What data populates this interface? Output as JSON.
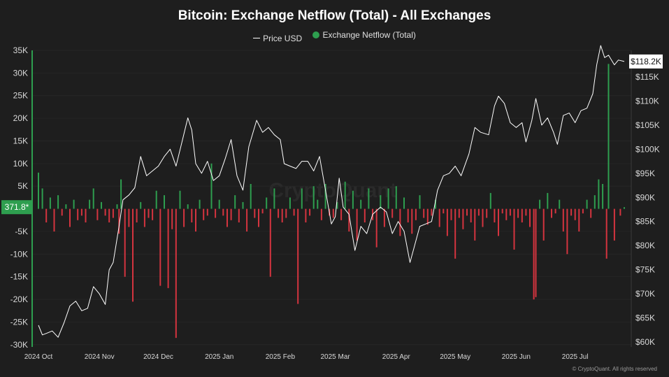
{
  "chart_data": {
    "type": "bar",
    "title": "Bitcoin: Exchange Netflow (Total) - All Exchanges",
    "legend": [
      {
        "name": "Price USD",
        "marker": "line",
        "color": "#ffffff"
      },
      {
        "name": "Exchange Netflow (Total)",
        "marker": "dot",
        "color": "#2e9e4f"
      }
    ],
    "legend_position": "top-center",
    "watermark": "CryptoQuant",
    "copyright": "© CryptoQuant. All rights reserved",
    "colors": {
      "positive": "#2e9e4f",
      "negative": "#d4343f",
      "price": "#ffffff",
      "background": "#1e1e1e"
    },
    "left_axis": {
      "label": "",
      "range": [
        -30500,
        35000
      ],
      "ticks": [
        35000,
        30000,
        25000,
        20000,
        15000,
        10000,
        5000,
        -5000,
        -10000,
        -15000,
        -20000,
        -25000,
        -30000
      ],
      "tick_labels": [
        "35K",
        "30K",
        "25K",
        "20K",
        "15K",
        "10K",
        "5K",
        "-5K",
        "-10K",
        "-15K",
        "-20K",
        "-25K",
        "-30K"
      ]
    },
    "right_axis": {
      "label": "",
      "range": [
        59000,
        120500
      ],
      "ticks": [
        115000,
        110000,
        105000,
        100000,
        95000,
        90000,
        85000,
        80000,
        75000,
        70000,
        65000,
        60000
      ],
      "tick_labels": [
        "$115K",
        "$110K",
        "$105K",
        "$100K",
        "$95K",
        "$90K",
        "$85K",
        "$80K",
        "$75K",
        "$70K",
        "$65K",
        "$60K"
      ]
    },
    "x_axis": {
      "start": "2024-10-01",
      "end": "2025-07-26",
      "tick_dates": [
        "2024-10-01",
        "2024-11-01",
        "2024-12-01",
        "2025-01-01",
        "2025-02-01",
        "2025-03-01",
        "2025-04-01",
        "2025-05-01",
        "2025-06-01",
        "2025-07-01"
      ],
      "tick_labels": [
        "2024 Oct",
        "2024 Nov",
        "2024 Dec",
        "2025 Jan",
        "2025 Feb",
        "2025 Mar",
        "2025 Apr",
        "2025 May",
        "2025 Jun",
        "2025 Jul"
      ]
    },
    "current_netflow_label": "371.8*",
    "current_netflow_value": 371.8,
    "current_price_label": "$118.2K",
    "current_price_value": 118200,
    "netflow": [
      [
        "2024-10-01",
        8000
      ],
      [
        "2024-10-03",
        4500
      ],
      [
        "2024-10-05",
        -3000
      ],
      [
        "2024-10-07",
        2500
      ],
      [
        "2024-10-09",
        -5000
      ],
      [
        "2024-10-11",
        3000
      ],
      [
        "2024-10-13",
        -1500
      ],
      [
        "2024-10-15",
        1000
      ],
      [
        "2024-10-17",
        -4000
      ],
      [
        "2024-10-19",
        2000
      ],
      [
        "2024-10-21",
        -2500
      ],
      [
        "2024-10-23",
        -1500
      ],
      [
        "2024-10-25",
        -3000
      ],
      [
        "2024-10-27",
        2000
      ],
      [
        "2024-10-29",
        4500
      ],
      [
        "2024-10-31",
        -2500
      ],
      [
        "2024-11-02",
        1500
      ],
      [
        "2024-11-04",
        -1500
      ],
      [
        "2024-11-06",
        -3000
      ],
      [
        "2024-11-08",
        -2000
      ],
      [
        "2024-11-10",
        1000
      ],
      [
        "2024-11-11",
        -5500
      ],
      [
        "2024-11-12",
        6500
      ],
      [
        "2024-11-14",
        -15000
      ],
      [
        "2024-11-16",
        -4000
      ],
      [
        "2024-11-18",
        -20500
      ],
      [
        "2024-11-20",
        -3000
      ],
      [
        "2024-11-22",
        1500
      ],
      [
        "2024-11-24",
        -4000
      ],
      [
        "2024-11-26",
        -2000
      ],
      [
        "2024-11-28",
        -2500
      ],
      [
        "2024-11-30",
        4000
      ],
      [
        "2024-12-02",
        -17000
      ],
      [
        "2024-12-04",
        3000
      ],
      [
        "2024-12-06",
        -17500
      ],
      [
        "2024-12-08",
        -4500
      ],
      [
        "2024-12-10",
        -28500
      ],
      [
        "2024-12-12",
        4000
      ],
      [
        "2024-12-14",
        -4000
      ],
      [
        "2024-12-16",
        1000
      ],
      [
        "2024-12-18",
        -3000
      ],
      [
        "2024-12-20",
        -5000
      ],
      [
        "2024-12-22",
        2000
      ],
      [
        "2024-12-24",
        -2500
      ],
      [
        "2024-12-26",
        -1500
      ],
      [
        "2024-12-28",
        10000
      ],
      [
        "2024-12-30",
        -2000
      ],
      [
        "2025-01-01",
        2000
      ],
      [
        "2025-01-03",
        -1500
      ],
      [
        "2025-01-05",
        -4000
      ],
      [
        "2025-01-07",
        -2500
      ],
      [
        "2025-01-09",
        3000
      ],
      [
        "2025-01-11",
        -3000
      ],
      [
        "2025-01-13",
        1500
      ],
      [
        "2025-01-15",
        -5000
      ],
      [
        "2025-01-17",
        5500
      ],
      [
        "2025-01-19",
        -2000
      ],
      [
        "2025-01-21",
        -4000
      ],
      [
        "2025-01-23",
        -1000
      ],
      [
        "2025-01-25",
        2500
      ],
      [
        "2025-01-27",
        -15000
      ],
      [
        "2025-01-29",
        4500
      ],
      [
        "2025-01-31",
        -2000
      ],
      [
        "2025-02-02",
        -3000
      ],
      [
        "2025-02-04",
        -2000
      ],
      [
        "2025-02-06",
        2500
      ],
      [
        "2025-02-08",
        -1500
      ],
      [
        "2025-02-10",
        -21000
      ],
      [
        "2025-02-12",
        4500
      ],
      [
        "2025-02-14",
        -3000
      ],
      [
        "2025-02-16",
        -1500
      ],
      [
        "2025-02-18",
        5000
      ],
      [
        "2025-02-20",
        2000
      ],
      [
        "2025-02-22",
        -2500
      ],
      [
        "2025-02-24",
        5500
      ],
      [
        "2025-02-26",
        -1500
      ],
      [
        "2025-02-28",
        -2000
      ],
      [
        "2025-03-02",
        1500
      ],
      [
        "2025-03-04",
        -2500
      ],
      [
        "2025-03-06",
        6000
      ],
      [
        "2025-03-08",
        -5000
      ],
      [
        "2025-03-10",
        4000
      ],
      [
        "2025-03-12",
        -7000
      ],
      [
        "2025-03-14",
        2000
      ],
      [
        "2025-03-16",
        -3000
      ],
      [
        "2025-03-18",
        4500
      ],
      [
        "2025-03-20",
        -2500
      ],
      [
        "2025-03-22",
        -8500
      ],
      [
        "2025-03-24",
        3000
      ],
      [
        "2025-03-26",
        -4000
      ],
      [
        "2025-03-28",
        4500
      ],
      [
        "2025-03-30",
        -2000
      ],
      [
        "2025-04-01",
        5000
      ],
      [
        "2025-04-03",
        -6000
      ],
      [
        "2025-04-05",
        2500
      ],
      [
        "2025-04-07",
        -3000
      ],
      [
        "2025-04-09",
        -5500
      ],
      [
        "2025-04-11",
        -2500
      ],
      [
        "2025-04-13",
        3000
      ],
      [
        "2025-04-15",
        -2000
      ],
      [
        "2025-04-17",
        -3500
      ],
      [
        "2025-04-19",
        -1500
      ],
      [
        "2025-04-21",
        2000
      ],
      [
        "2025-04-23",
        -4000
      ],
      [
        "2025-04-25",
        -1000
      ],
      [
        "2025-04-27",
        -6000
      ],
      [
        "2025-04-29",
        -2500
      ],
      [
        "2025-05-01",
        -11000
      ],
      [
        "2025-05-03",
        -2000
      ],
      [
        "2025-05-05",
        -4500
      ],
      [
        "2025-05-07",
        -1500
      ],
      [
        "2025-05-09",
        -3000
      ],
      [
        "2025-05-11",
        -7000
      ],
      [
        "2025-05-13",
        -1500
      ],
      [
        "2025-05-15",
        -4000
      ],
      [
        "2025-05-17",
        -2000
      ],
      [
        "2025-05-19",
        3500
      ],
      [
        "2025-05-21",
        -3000
      ],
      [
        "2025-05-23",
        -6000
      ],
      [
        "2025-05-25",
        -1000
      ],
      [
        "2025-05-27",
        -2500
      ],
      [
        "2025-05-29",
        -1500
      ],
      [
        "2025-05-31",
        -9000
      ],
      [
        "2025-06-02",
        -2000
      ],
      [
        "2025-06-04",
        -3000
      ],
      [
        "2025-06-06",
        -1500
      ],
      [
        "2025-06-08",
        -4000
      ],
      [
        "2025-06-10",
        -20000
      ],
      [
        "2025-06-11",
        -19500
      ],
      [
        "2025-06-13",
        2000
      ],
      [
        "2025-06-15",
        -7000
      ],
      [
        "2025-06-17",
        3500
      ],
      [
        "2025-06-19",
        -2000
      ],
      [
        "2025-06-21",
        -1000
      ],
      [
        "2025-06-23",
        2000
      ],
      [
        "2025-06-25",
        -5000
      ],
      [
        "2025-06-27",
        -10000
      ],
      [
        "2025-06-29",
        -1500
      ],
      [
        "2025-07-01",
        -2500
      ],
      [
        "2025-07-03",
        -5000
      ],
      [
        "2025-07-05",
        -1000
      ],
      [
        "2025-07-07",
        2000
      ],
      [
        "2025-07-09",
        -2000
      ],
      [
        "2025-07-11",
        3000
      ],
      [
        "2025-07-13",
        6500
      ],
      [
        "2025-07-15",
        5500
      ],
      [
        "2025-07-17",
        -11000
      ],
      [
        "2025-07-18",
        32000
      ],
      [
        "2025-07-21",
        -7000
      ],
      [
        "2025-07-24",
        -1500
      ],
      [
        "2025-07-26",
        370
      ]
    ],
    "price": [
      [
        "2024-10-01",
        63500
      ],
      [
        "2024-10-03",
        61500
      ],
      [
        "2024-10-05",
        61800
      ],
      [
        "2024-10-08",
        62300
      ],
      [
        "2024-10-11",
        61000
      ],
      [
        "2024-10-14",
        64000
      ],
      [
        "2024-10-17",
        67500
      ],
      [
        "2024-10-20",
        68500
      ],
      [
        "2024-10-23",
        66500
      ],
      [
        "2024-10-26",
        67000
      ],
      [
        "2024-10-29",
        71500
      ],
      [
        "2024-11-01",
        70000
      ],
      [
        "2024-11-04",
        67800
      ],
      [
        "2024-11-06",
        75000
      ],
      [
        "2024-11-08",
        76500
      ],
      [
        "2024-11-11",
        84000
      ],
      [
        "2024-11-13",
        89500
      ],
      [
        "2024-11-16",
        90500
      ],
      [
        "2024-11-19",
        92000
      ],
      [
        "2024-11-22",
        98500
      ],
      [
        "2024-11-25",
        94500
      ],
      [
        "2024-11-28",
        95500
      ],
      [
        "2024-12-01",
        96500
      ],
      [
        "2024-12-04",
        98500
      ],
      [
        "2024-12-07",
        100000
      ],
      [
        "2024-12-10",
        96500
      ],
      [
        "2024-12-13",
        101500
      ],
      [
        "2024-12-16",
        106500
      ],
      [
        "2024-12-18",
        104000
      ],
      [
        "2024-12-20",
        97000
      ],
      [
        "2024-12-23",
        95000
      ],
      [
        "2024-12-26",
        97500
      ],
      [
        "2024-12-29",
        93500
      ],
      [
        "2025-01-01",
        94500
      ],
      [
        "2025-01-04",
        98000
      ],
      [
        "2025-01-07",
        102000
      ],
      [
        "2025-01-10",
        94500
      ],
      [
        "2025-01-13",
        91500
      ],
      [
        "2025-01-16",
        100500
      ],
      [
        "2025-01-20",
        106000
      ],
      [
        "2025-01-23",
        103500
      ],
      [
        "2025-01-26",
        104500
      ],
      [
        "2025-01-29",
        103000
      ],
      [
        "2025-02-01",
        102000
      ],
      [
        "2025-02-03",
        97000
      ],
      [
        "2025-02-06",
        96500
      ],
      [
        "2025-02-09",
        96000
      ],
      [
        "2025-02-12",
        97500
      ],
      [
        "2025-02-15",
        97500
      ],
      [
        "2025-02-18",
        95500
      ],
      [
        "2025-02-21",
        98500
      ],
      [
        "2025-02-24",
        91500
      ],
      [
        "2025-02-27",
        84500
      ],
      [
        "2025-03-01",
        86000
      ],
      [
        "2025-03-03",
        94000
      ],
      [
        "2025-03-05",
        88000
      ],
      [
        "2025-03-08",
        86500
      ],
      [
        "2025-03-11",
        79000
      ],
      [
        "2025-03-14",
        84000
      ],
      [
        "2025-03-17",
        82500
      ],
      [
        "2025-03-20",
        86500
      ],
      [
        "2025-03-24",
        88000
      ],
      [
        "2025-03-27",
        87000
      ],
      [
        "2025-03-30",
        82500
      ],
      [
        "2025-04-02",
        85000
      ],
      [
        "2025-04-05",
        83000
      ],
      [
        "2025-04-08",
        76500
      ],
      [
        "2025-04-10",
        79500
      ],
      [
        "2025-04-13",
        84000
      ],
      [
        "2025-04-16",
        84500
      ],
      [
        "2025-04-19",
        85000
      ],
      [
        "2025-04-22",
        91500
      ],
      [
        "2025-04-25",
        94500
      ],
      [
        "2025-04-28",
        95000
      ],
      [
        "2025-05-01",
        96500
      ],
      [
        "2025-05-04",
        94500
      ],
      [
        "2025-05-08",
        99000
      ],
      [
        "2025-05-11",
        104500
      ],
      [
        "2025-05-14",
        103500
      ],
      [
        "2025-05-18",
        103000
      ],
      [
        "2025-05-21",
        109000
      ],
      [
        "2025-05-23",
        111000
      ],
      [
        "2025-05-26",
        109500
      ],
      [
        "2025-05-29",
        105500
      ],
      [
        "2025-06-01",
        104500
      ],
      [
        "2025-06-04",
        105500
      ],
      [
        "2025-06-06",
        101500
      ],
      [
        "2025-06-09",
        106000
      ],
      [
        "2025-06-11",
        110500
      ],
      [
        "2025-06-14",
        105000
      ],
      [
        "2025-06-17",
        106500
      ],
      [
        "2025-06-20",
        103500
      ],
      [
        "2025-06-22",
        101000
      ],
      [
        "2025-06-25",
        107000
      ],
      [
        "2025-06-28",
        107500
      ],
      [
        "2025-07-01",
        105500
      ],
      [
        "2025-07-04",
        108000
      ],
      [
        "2025-07-07",
        108500
      ],
      [
        "2025-07-10",
        111500
      ],
      [
        "2025-07-12",
        117500
      ],
      [
        "2025-07-14",
        121500
      ],
      [
        "2025-07-16",
        119000
      ],
      [
        "2025-07-18",
        119500
      ],
      [
        "2025-07-21",
        117500
      ],
      [
        "2025-07-23",
        118500
      ],
      [
        "2025-07-26",
        118200
      ]
    ]
  }
}
